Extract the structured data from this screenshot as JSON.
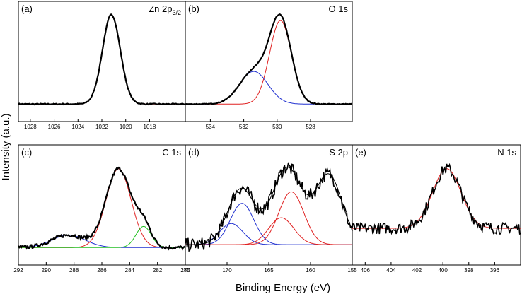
{
  "figure": {
    "ylabel": "Intensity (a.u.)",
    "xlabel": "Binding Energy (eV)"
  },
  "chart_data": [
    {
      "type": "line",
      "panel": "(a)",
      "title": "Zn 2p",
      "title_sub": "3/2",
      "xlim": [
        1029,
        1015
      ],
      "ylim": [
        0,
        1
      ],
      "xticks": [
        1028,
        1026,
        1024,
        1022,
        1020,
        1018
      ],
      "xticks_label": [
        "1028",
        "1026",
        "1024",
        "1022",
        "1020",
        "1018"
      ],
      "components": [
        {
          "color": "#e02020",
          "width": 1,
          "center": 1021.2,
          "sigma": 0.75,
          "amp": 0.93,
          "bg": 0.02
        }
      ],
      "envelope": {
        "color": "#000000",
        "width": 2.2,
        "center": 1021.2,
        "sigma": 0.75,
        "amp": 0.93,
        "bg": 0.02,
        "noise": 0.006
      }
    },
    {
      "type": "line",
      "panel": "(b)",
      "title": "O 1s",
      "xlim": [
        535.5,
        525.5
      ],
      "ylim": [
        0,
        1
      ],
      "xticks": [
        534,
        532,
        530,
        528
      ],
      "xticks_label": [
        "534",
        "532",
        "530",
        "528"
      ],
      "components": [
        {
          "color": "#e02020",
          "width": 1,
          "center": 529.8,
          "sigma": 0.65,
          "amp": 0.87,
          "bg": 0.02
        },
        {
          "color": "#2030d0",
          "width": 1,
          "center": 531.4,
          "sigma": 0.85,
          "amp": 0.34,
          "bg": 0.02
        }
      ],
      "envelope": {
        "color": "#000000",
        "width": 2.2,
        "sum": true,
        "bg": 0.02,
        "noise": 0.004
      }
    },
    {
      "type": "line",
      "panel": "(c)",
      "title": "C 1s",
      "xlim": [
        292,
        280
      ],
      "ylim": [
        0,
        1
      ],
      "xticks": [
        292,
        290,
        288,
        286,
        284,
        282,
        280
      ],
      "xticks_label": [
        "292",
        "290",
        "288",
        "286",
        "284",
        "282",
        "280"
      ],
      "components": [
        {
          "color": "#e02020",
          "width": 1,
          "center": 284.8,
          "sigma": 0.9,
          "amp": 0.82,
          "bg": 0.02
        },
        {
          "color": "#2030d0",
          "width": 1,
          "center": 288.4,
          "sigma": 1.2,
          "amp": 0.13,
          "bg": 0.02
        },
        {
          "color": "#20c020",
          "width": 1,
          "center": 283.0,
          "sigma": 0.55,
          "amp": 0.22,
          "bg": 0.02
        }
      ],
      "envelope": {
        "color": "#000000",
        "width": 2.2,
        "sum": true,
        "bg": 0.02,
        "noise": 0.018
      }
    },
    {
      "type": "line",
      "panel": "(d)",
      "title": "S 2p",
      "xlim": [
        175,
        155
      ],
      "ylim": [
        0,
        1
      ],
      "xticks": [
        175,
        170,
        165,
        160,
        155
      ],
      "xticks_label": [
        "175",
        "170",
        "165",
        "160",
        "155"
      ],
      "components": [
        {
          "color": "#2030d0",
          "width": 1,
          "center": 168.2,
          "sigma": 1.4,
          "amp": 0.43,
          "bg": 0.05
        },
        {
          "color": "#2030d0",
          "width": 1,
          "center": 169.5,
          "sigma": 1.4,
          "amp": 0.22,
          "bg": 0.05
        },
        {
          "color": "#e02020",
          "width": 1,
          "center": 162.3,
          "sigma": 1.5,
          "amp": 0.55,
          "bg": 0.05
        },
        {
          "color": "#e02020",
          "width": 1,
          "center": 163.5,
          "sigma": 1.5,
          "amp": 0.28,
          "bg": 0.05
        }
      ],
      "fit_line": {
        "color": "#000000",
        "width": 1,
        "peaks": [
          [
            168.3,
            1.6,
            0.58
          ],
          [
            162.8,
            1.8,
            0.8
          ],
          [
            157.8,
            1.6,
            0.72
          ]
        ],
        "bg": 0.05
      },
      "envelope": {
        "color": "#000000",
        "width": 1.6,
        "peaks": [
          [
            168.3,
            1.6,
            0.58
          ],
          [
            162.8,
            1.8,
            0.8
          ],
          [
            157.8,
            1.6,
            0.72
          ]
        ],
        "bg": 0.05,
        "noise": 0.07
      }
    },
    {
      "type": "line",
      "panel": "(e)",
      "title": "N 1s",
      "xlim": [
        407,
        394
      ],
      "ylim": [
        0,
        1
      ],
      "xticks": [
        406,
        404,
        402,
        400,
        398,
        396
      ],
      "xticks_label": [
        "406",
        "404",
        "402",
        "400",
        "398",
        "396"
      ],
      "components": [
        {
          "color": "#e02020",
          "width": 1,
          "center": 399.7,
          "sigma": 1.1,
          "amp": 0.62,
          "bg": 0.22
        }
      ],
      "envelope": {
        "color": "#000000",
        "width": 1.6,
        "center": 399.7,
        "sigma": 1.1,
        "amp": 0.62,
        "bg": 0.22,
        "noise": 0.06
      }
    }
  ]
}
